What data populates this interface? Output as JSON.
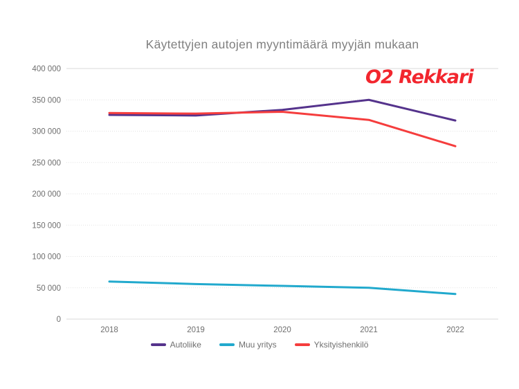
{
  "title": "Käytettyjen autojen myyntimäärä myyjän mukaan",
  "logo": {
    "text": "O2 Rekkari",
    "color": "#f2262e"
  },
  "chart_data": {
    "type": "line",
    "x": [
      "2018",
      "2019",
      "2020",
      "2021",
      "2022"
    ],
    "series": [
      {
        "name": "Autoliike",
        "color": "#55338c",
        "values": [
          326000,
          325000,
          334000,
          350000,
          317000
        ]
      },
      {
        "name": "Muu yritys",
        "color": "#21a9cd",
        "values": [
          60000,
          56000,
          53000,
          50000,
          40000
        ]
      },
      {
        "name": "Yksityishenkilö",
        "color": "#f53d3d",
        "values": [
          329000,
          328000,
          331000,
          318000,
          276000
        ]
      }
    ],
    "title": "Käytettyjen autojen myyntimäärä myyjän mukaan",
    "xlabel": "",
    "ylabel": "",
    "ylim": [
      0,
      400000
    ],
    "y_ticks": {
      "values": [
        0,
        50000,
        100000,
        150000,
        200000,
        250000,
        300000,
        350000,
        400000
      ],
      "labels": [
        "0",
        "50 000",
        "100 000",
        "150 000",
        "200 000",
        "250 000",
        "300 000",
        "350 000",
        "400 000"
      ]
    },
    "grid": true,
    "legend_position": "bottom",
    "axis_text_color": "#6e6e6e",
    "grid_color": "#e2e2e2"
  }
}
